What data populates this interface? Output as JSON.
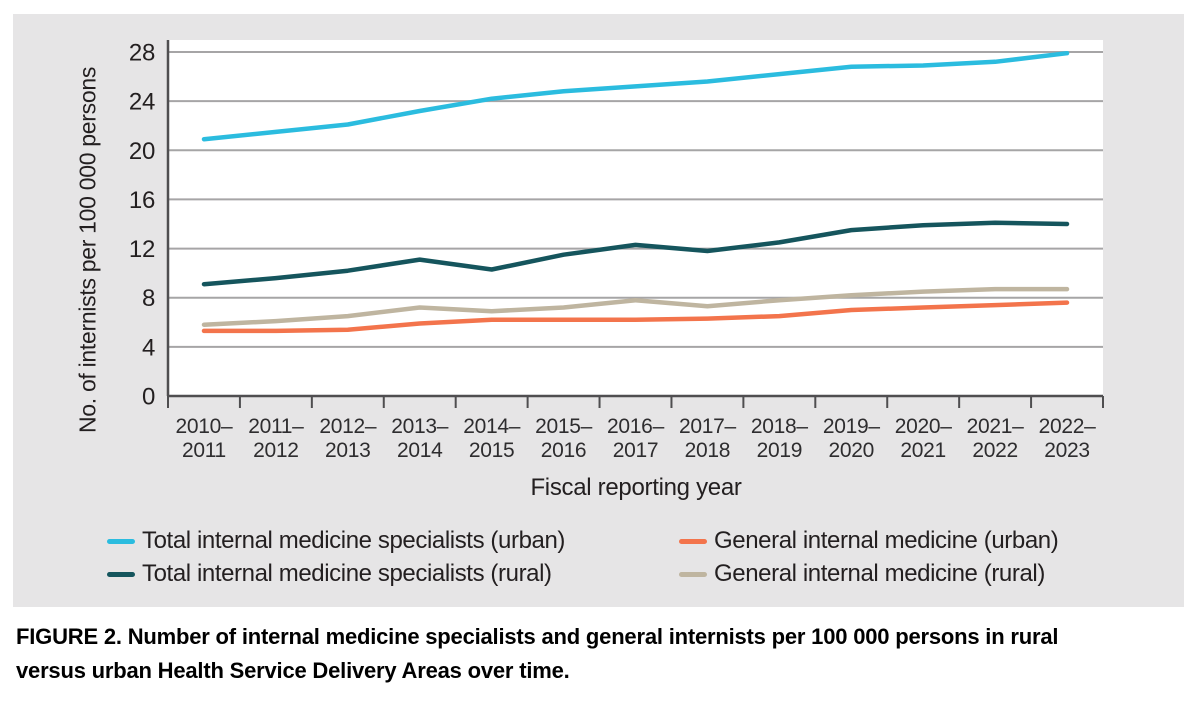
{
  "colors": {
    "panel_bg": "#e6e5e6",
    "plot_bg": "#ffffff",
    "gridline": "#a6a5a6",
    "axis": "#4f4e50",
    "text": "#231f20"
  },
  "chart_data": {
    "type": "line",
    "xlabel": "Fiscal reporting year",
    "ylabel": "No. of internists per 100 000 persons",
    "ylim": [
      0,
      28
    ],
    "yticks": [
      0,
      4,
      8,
      12,
      16,
      20,
      24,
      28
    ],
    "grid": "horizontal",
    "legend_position": "bottom",
    "categories": [
      "2010–2011",
      "2011–2012",
      "2012–2013",
      "2013–2014",
      "2014–2015",
      "2015–2016",
      "2016–2017",
      "2017–2018",
      "2018–2019",
      "2019–2020",
      "2020–2021",
      "2021–2022",
      "2022–2023"
    ],
    "series": [
      {
        "name": "Total internal medicine specialists (urban)",
        "color": "#2bbcdf",
        "values": [
          20.9,
          21.5,
          22.1,
          23.2,
          24.2,
          24.8,
          25.2,
          25.6,
          26.2,
          26.8,
          26.9,
          27.2,
          27.9
        ]
      },
      {
        "name": "Total internal medicine specialists (rural)",
        "color": "#15555d",
        "values": [
          9.1,
          9.6,
          10.2,
          11.1,
          10.3,
          11.5,
          12.3,
          11.8,
          12.5,
          13.5,
          13.9,
          14.1,
          14.0
        ]
      },
      {
        "name": "General internal medicine (urban)",
        "color": "#f3744c",
        "values": [
          5.3,
          5.3,
          5.4,
          5.9,
          6.2,
          6.2,
          6.2,
          6.3,
          6.5,
          7.0,
          7.2,
          7.4,
          7.6
        ]
      },
      {
        "name": "General internal medicine (rural)",
        "color": "#bfb5a0",
        "values": [
          5.8,
          6.1,
          6.5,
          7.2,
          6.9,
          7.2,
          7.8,
          7.3,
          7.8,
          8.2,
          8.5,
          8.7,
          8.7
        ]
      }
    ]
  },
  "figure": {
    "caption_label": "FIGURE 2.",
    "caption_line1": "Number of internal medicine specialists and general internists per 100 000 persons in rural",
    "caption_line2": "versus urban Health Service Delivery Areas over time."
  }
}
